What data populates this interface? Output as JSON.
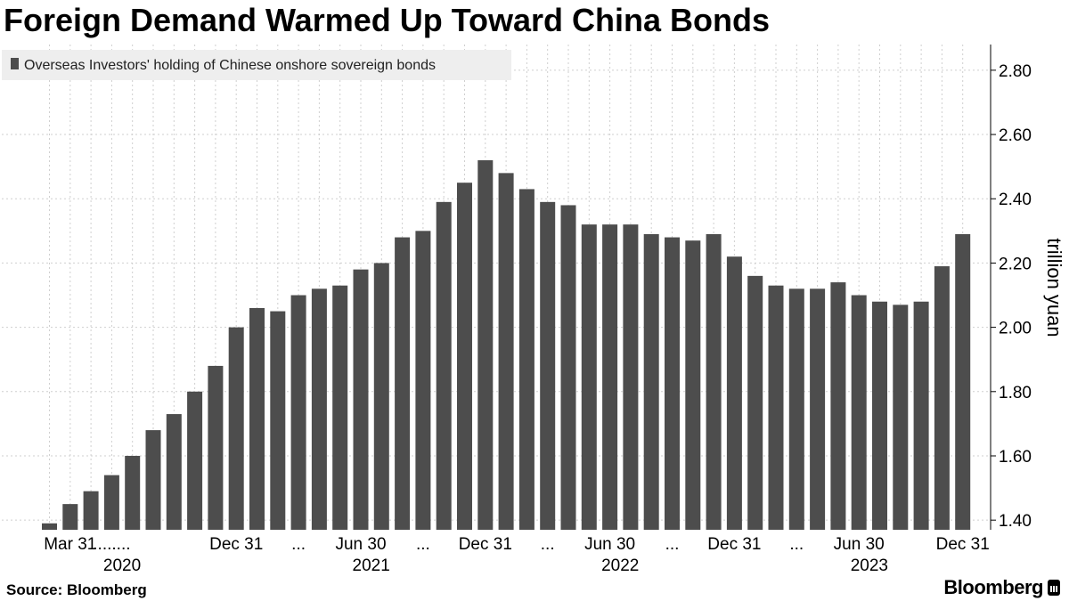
{
  "title": "Foreign Demand Warmed Up Toward China Bonds",
  "source": "Source: Bloomberg",
  "brand": "Bloomberg",
  "colors": {
    "bar": "#4d4d4d",
    "grid": "#cfcfcf",
    "legend_bg": "#eeeeee"
  },
  "chart_data": {
    "type": "bar",
    "legend": "Overseas Investors' holding of Chinese onshore sovereign bonds",
    "ylabel": "trillion yuan",
    "ylim": [
      1.37,
      2.88
    ],
    "yticks": [
      "2.80",
      "2.60",
      "2.40",
      "2.20",
      "2.00",
      "1.80",
      "1.60",
      "1.40"
    ],
    "ytick_values": [
      2.8,
      2.6,
      2.4,
      2.2,
      2.0,
      1.8,
      1.6,
      1.4
    ],
    "values": [
      1.39,
      1.45,
      1.49,
      1.54,
      1.6,
      1.68,
      1.73,
      1.8,
      1.88,
      2.0,
      2.06,
      2.05,
      2.1,
      2.12,
      2.13,
      2.18,
      2.2,
      2.28,
      2.3,
      2.39,
      2.45,
      2.52,
      2.48,
      2.43,
      2.39,
      2.38,
      2.32,
      2.32,
      2.32,
      2.29,
      2.28,
      2.27,
      2.29,
      2.22,
      2.16,
      2.13,
      2.12,
      2.12,
      2.14,
      2.1,
      2.08,
      2.07,
      2.08,
      2.19,
      2.29
    ],
    "x_tick_labels": [
      {
        "i": 1,
        "text": "Mar 31"
      },
      {
        "i": 3,
        "text": "........"
      },
      {
        "i": 9,
        "text": "Dec 31"
      },
      {
        "i": 12,
        "text": "..."
      },
      {
        "i": 15,
        "text": "Jun 30"
      },
      {
        "i": 18,
        "text": "..."
      },
      {
        "i": 21,
        "text": "Dec 31"
      },
      {
        "i": 24,
        "text": "..."
      },
      {
        "i": 27,
        "text": "Jun 30"
      },
      {
        "i": 30,
        "text": "..."
      },
      {
        "i": 33,
        "text": "Dec 31"
      },
      {
        "i": 36,
        "text": "..."
      },
      {
        "i": 39,
        "text": "Jun 30"
      },
      {
        "i": 44,
        "text": "Dec 31"
      }
    ],
    "year_labels": [
      {
        "i": 3.5,
        "text": "2020"
      },
      {
        "i": 15.5,
        "text": "2021"
      },
      {
        "i": 27.5,
        "text": "2022"
      },
      {
        "i": 39.5,
        "text": "2023"
      }
    ],
    "grid": true,
    "legend_position": "top-left"
  }
}
